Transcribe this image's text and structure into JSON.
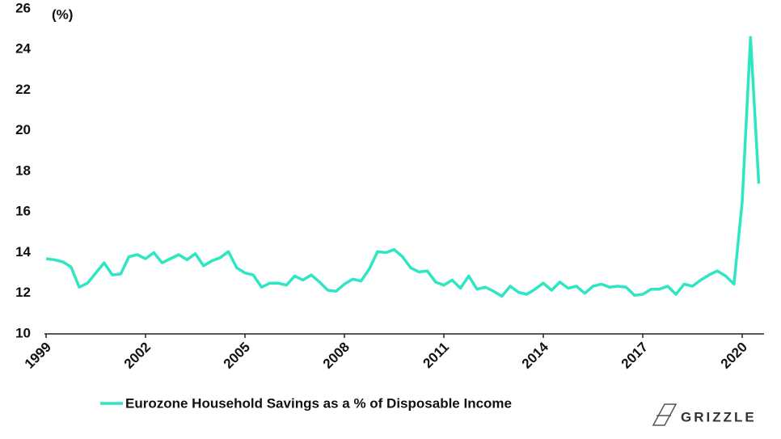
{
  "chart_data": {
    "type": "line",
    "y_axis_label": "(%)",
    "categories": [
      "1999",
      null,
      null,
      null,
      null,
      null,
      null,
      null,
      null,
      null,
      null,
      null,
      "2002",
      null,
      null,
      null,
      null,
      null,
      null,
      null,
      null,
      null,
      null,
      null,
      "2005",
      null,
      null,
      null,
      null,
      null,
      null,
      null,
      null,
      null,
      null,
      null,
      "2008",
      null,
      null,
      null,
      null,
      null,
      null,
      null,
      null,
      null,
      null,
      null,
      "2011",
      null,
      null,
      null,
      null,
      null,
      null,
      null,
      null,
      null,
      null,
      null,
      "2014",
      null,
      null,
      null,
      null,
      null,
      null,
      null,
      null,
      null,
      null,
      null,
      "2017",
      null,
      null,
      null,
      null,
      null,
      null,
      null,
      null,
      null,
      null,
      null,
      "2020",
      null,
      null
    ],
    "series": [
      {
        "name": "Eurozone Household Savings as a % of Disposable Income",
        "color": "#2fe6c3",
        "values": [
          13.7,
          13.65,
          13.55,
          13.3,
          12.3,
          12.5,
          13.0,
          13.5,
          12.9,
          12.95,
          13.8,
          13.9,
          13.7,
          14.0,
          13.5,
          13.7,
          13.9,
          13.65,
          13.95,
          13.35,
          13.6,
          13.75,
          14.05,
          13.25,
          13.0,
          12.9,
          12.3,
          12.5,
          12.5,
          12.4,
          12.85,
          12.65,
          12.9,
          12.55,
          12.15,
          12.1,
          12.45,
          12.7,
          12.6,
          13.2,
          14.05,
          14.0,
          14.15,
          13.8,
          13.25,
          13.05,
          13.1,
          12.55,
          12.4,
          12.65,
          12.25,
          12.85,
          12.2,
          12.3,
          12.1,
          11.85,
          12.35,
          12.05,
          11.95,
          12.2,
          12.5,
          12.15,
          12.55,
          12.25,
          12.35,
          12.0,
          12.35,
          12.45,
          12.3,
          12.35,
          12.3,
          11.9,
          11.95,
          12.2,
          12.2,
          12.35,
          11.95,
          12.45,
          12.35,
          12.65,
          12.9,
          13.1,
          12.85,
          12.45,
          16.5,
          24.6,
          17.4
        ]
      }
    ],
    "ylim": [
      10,
      26
    ],
    "yticks": [
      10,
      12,
      14,
      16,
      18,
      20,
      22,
      24,
      26
    ],
    "legend": "bottom"
  },
  "logo_text": "GRIZZLE"
}
